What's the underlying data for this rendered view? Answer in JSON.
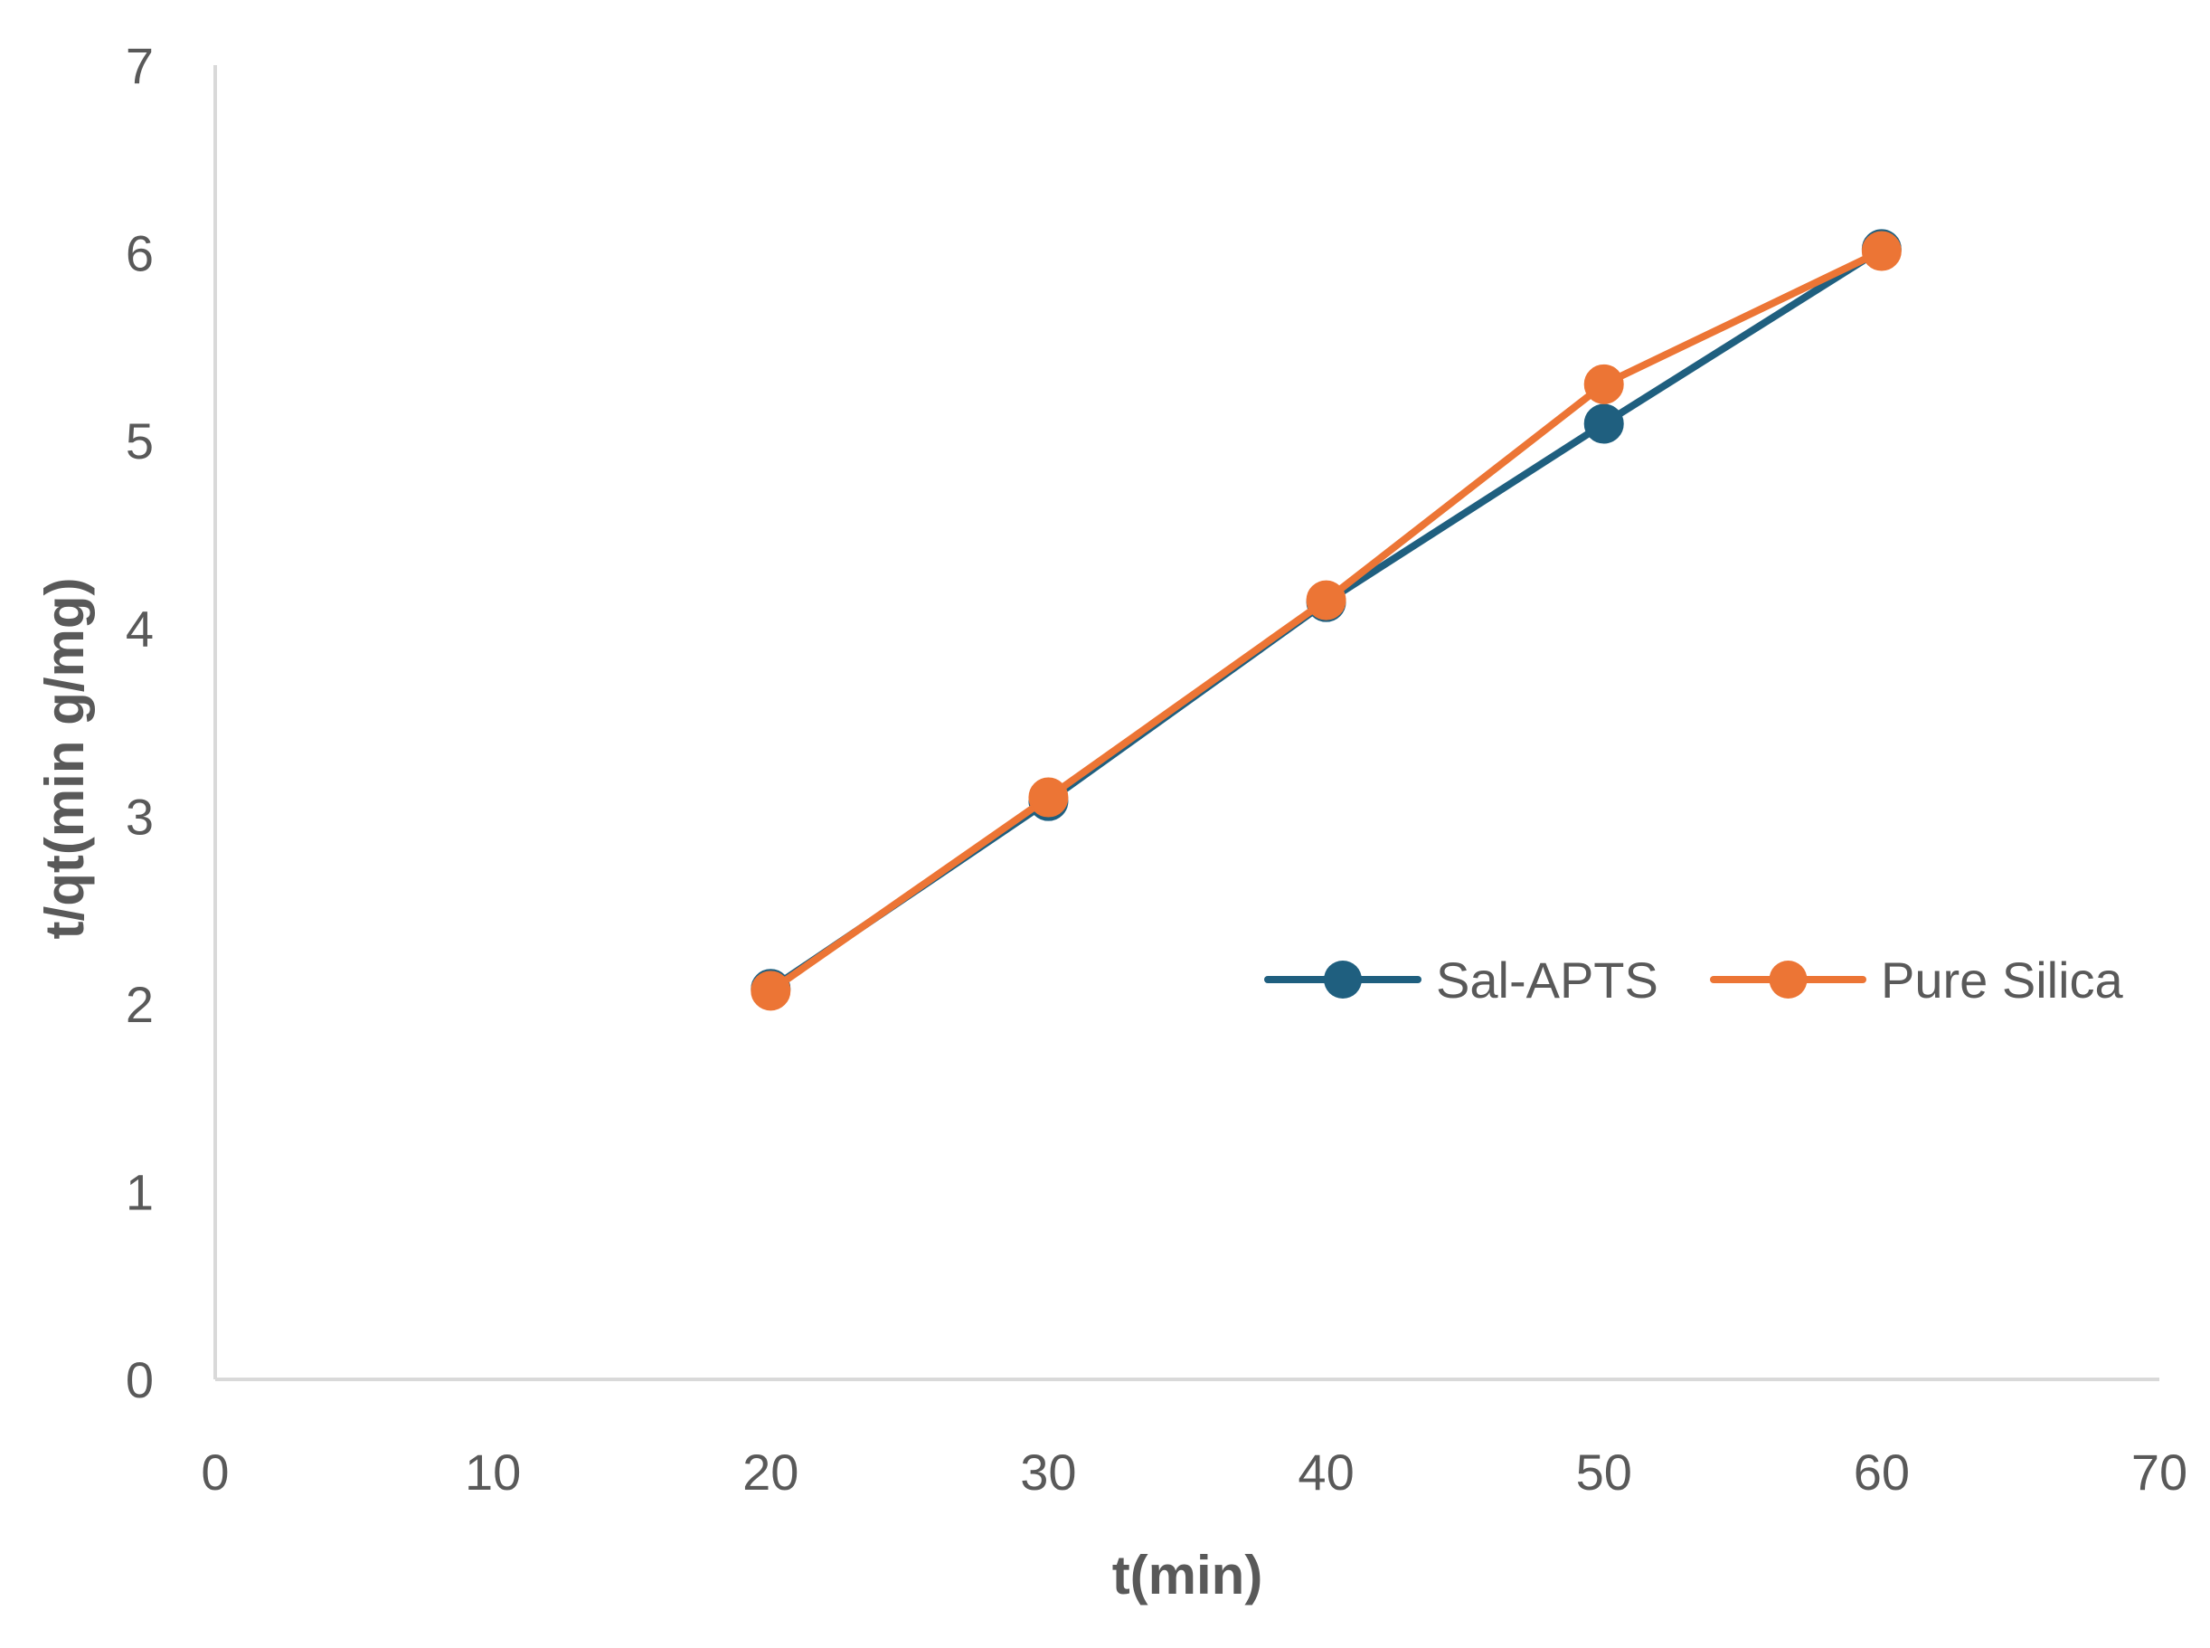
{
  "chart_data": {
    "type": "line",
    "title": "",
    "xlabel": "t(min)",
    "ylabel": "t/qt(min g/mg)",
    "xlim": [
      0,
      70
    ],
    "ylim": [
      0,
      7
    ],
    "xticks": [
      0,
      10,
      20,
      30,
      40,
      50,
      60,
      70
    ],
    "yticks": [
      0,
      1,
      2,
      3,
      4,
      5,
      6,
      7
    ],
    "grid": false,
    "legend_position": "right",
    "series": [
      {
        "name": "Sal-APTS",
        "color": "#1f5f7f",
        "marker": "circle",
        "x": [
          20,
          30,
          40,
          50,
          60
        ],
        "y": [
          2.08,
          3.08,
          4.14,
          5.09,
          6.02
        ]
      },
      {
        "name": "Pure Silica",
        "color": "#ec7535",
        "marker": "circle",
        "x": [
          20,
          30,
          40,
          50,
          60
        ],
        "y": [
          2.07,
          3.1,
          4.15,
          5.3,
          6.01
        ]
      }
    ]
  }
}
